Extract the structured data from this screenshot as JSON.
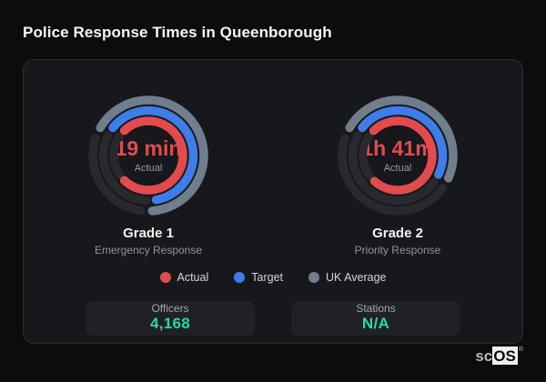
{
  "page": {
    "title": "Police Response Times in Queenborough"
  },
  "colors": {
    "actual": "#e24b4e",
    "target": "#3d7de8",
    "uk_average": "#6f7d8c",
    "track": "#27292d",
    "stat_value": "#29d8a2",
    "card_bg": "#17181b",
    "page_bg": "#0b0c0e"
  },
  "chart_data": [
    {
      "type": "gauge",
      "title": "Grade 1",
      "subtitle": "Emergency Response",
      "center_value": "19 min",
      "center_label": "Actual",
      "rings": [
        {
          "name": "UK Average",
          "key": "uk_average",
          "r": 61,
          "start_deg": 300,
          "sweep_deg": 236
        },
        {
          "name": "Target",
          "key": "target",
          "r": 49.5,
          "start_deg": 308,
          "sweep_deg": 222
        },
        {
          "name": "Actual",
          "key": "actual",
          "r": 38,
          "start_deg": 316,
          "sweep_deg": 268
        }
      ]
    },
    {
      "type": "gauge",
      "title": "Grade 2",
      "subtitle": "Priority Response",
      "center_value": "1h 41m",
      "center_label": "Actual",
      "rings": [
        {
          "name": "UK Average",
          "key": "uk_average",
          "r": 61,
          "start_deg": 300,
          "sweep_deg": 174
        },
        {
          "name": "Target",
          "key": "target",
          "r": 49.5,
          "start_deg": 308,
          "sweep_deg": 167
        },
        {
          "name": "Actual",
          "key": "actual",
          "r": 38,
          "start_deg": 316,
          "sweep_deg": 266
        }
      ]
    }
  ],
  "legend": [
    {
      "label": "Actual",
      "key": "actual"
    },
    {
      "label": "Target",
      "key": "target"
    },
    {
      "label": "UK Average",
      "key": "uk_average"
    }
  ],
  "stats": [
    {
      "label": "Officers",
      "value": "4,168"
    },
    {
      "label": "Stations",
      "value": "N/A"
    }
  ],
  "brand": {
    "prefix": "sc",
    "suffix": "OS",
    "reg": "®"
  }
}
